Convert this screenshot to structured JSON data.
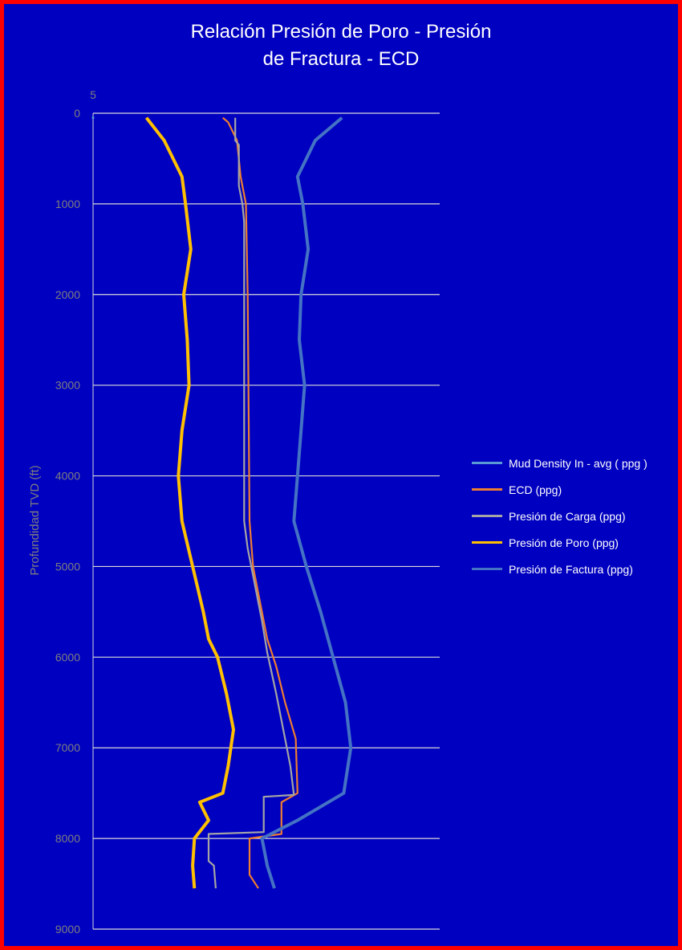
{
  "chart_data": {
    "type": "line",
    "title_line1": "Relación Presión de Poro - Presión",
    "title_line2": "de Fractura - ECD",
    "ylabel": "Profundidad TVD (ft)",
    "x_axis_top_label": "5",
    "ylim": [
      0,
      9000
    ],
    "y_reversed": true,
    "y_ticks": [
      "0",
      "1000",
      "2000",
      "3000",
      "4000",
      "5000",
      "6000",
      "7000",
      "8000",
      "9000"
    ],
    "grid": true,
    "legend_position": "right",
    "colors": {
      "background": "#0000c0",
      "border": "#ff0000",
      "mud_density": "#5b9bd5",
      "ecd": "#ed7d31",
      "carga": "#a5a5a5",
      "poro": "#ffc000",
      "fractura": "#4472c4"
    },
    "series": [
      {
        "name": "Mud Density In - avg ( ppg )",
        "key": "mud_density",
        "points": [
          [
            5,
            50
          ]
        ]
      },
      {
        "name": "ECD (ppg)",
        "key": "ecd",
        "points": [
          [
            12.3,
            50
          ],
          [
            12.6,
            100
          ],
          [
            13.1,
            300
          ],
          [
            13.3,
            700
          ],
          [
            13.6,
            1000
          ],
          [
            13.7,
            2000
          ],
          [
            13.8,
            4500
          ],
          [
            14.0,
            5000
          ],
          [
            14.4,
            5400
          ],
          [
            14.8,
            5800
          ],
          [
            15.3,
            6100
          ],
          [
            15.8,
            6500
          ],
          [
            16.4,
            6900
          ],
          [
            16.5,
            7500
          ],
          [
            15.6,
            7600
          ],
          [
            15.6,
            7950
          ],
          [
            13.8,
            8000
          ],
          [
            13.8,
            8400
          ],
          [
            14.3,
            8550
          ]
        ]
      },
      {
        "name": "Presión de Carga (ppg)",
        "key": "carga",
        "points": [
          [
            13.0,
            50
          ],
          [
            13.0,
            300
          ],
          [
            13.2,
            350
          ],
          [
            13.2,
            800
          ],
          [
            13.3,
            900
          ],
          [
            13.4,
            1000
          ],
          [
            13.5,
            1200
          ],
          [
            13.5,
            4500
          ],
          [
            13.7,
            4800
          ],
          [
            14.0,
            5100
          ],
          [
            14.5,
            5600
          ],
          [
            14.8,
            5950
          ],
          [
            15.3,
            6400
          ],
          [
            15.8,
            6900
          ],
          [
            16.1,
            7200
          ],
          [
            16.3,
            7520
          ],
          [
            14.6,
            7540
          ],
          [
            14.6,
            7930
          ],
          [
            11.5,
            7950
          ],
          [
            11.5,
            8250
          ],
          [
            11.8,
            8300
          ],
          [
            11.9,
            8550
          ]
        ]
      },
      {
        "name": "Presión de Poro (ppg)",
        "key": "poro",
        "points": [
          [
            8.0,
            50
          ],
          [
            9.0,
            300
          ],
          [
            10.0,
            700
          ],
          [
            10.2,
            1000
          ],
          [
            10.5,
            1500
          ],
          [
            10.1,
            2000
          ],
          [
            10.3,
            2500
          ],
          [
            10.4,
            3000
          ],
          [
            10.0,
            3500
          ],
          [
            9.8,
            4000
          ],
          [
            10.0,
            4500
          ],
          [
            10.6,
            5000
          ],
          [
            11.2,
            5500
          ],
          [
            11.5,
            5800
          ],
          [
            12.0,
            6000
          ],
          [
            12.5,
            6400
          ],
          [
            12.9,
            6800
          ],
          [
            12.6,
            7200
          ],
          [
            12.3,
            7500
          ],
          [
            11.0,
            7600
          ],
          [
            11.5,
            7800
          ],
          [
            10.7,
            8000
          ],
          [
            10.6,
            8300
          ],
          [
            10.7,
            8550
          ]
        ]
      },
      {
        "name": "Presión de Factura (ppg)",
        "key": "fractura",
        "points": [
          [
            19.0,
            50
          ],
          [
            17.5,
            300
          ],
          [
            16.5,
            700
          ],
          [
            16.8,
            1000
          ],
          [
            17.1,
            1500
          ],
          [
            16.7,
            2000
          ],
          [
            16.6,
            2500
          ],
          [
            16.9,
            3000
          ],
          [
            16.7,
            3500
          ],
          [
            16.5,
            4000
          ],
          [
            16.3,
            4500
          ],
          [
            17.0,
            5000
          ],
          [
            17.8,
            5500
          ],
          [
            18.5,
            6000
          ],
          [
            19.2,
            6500
          ],
          [
            19.5,
            7000
          ],
          [
            19.1,
            7500
          ],
          [
            16.5,
            7800
          ],
          [
            14.5,
            8000
          ],
          [
            14.8,
            8300
          ],
          [
            15.2,
            8550
          ]
        ]
      }
    ]
  }
}
